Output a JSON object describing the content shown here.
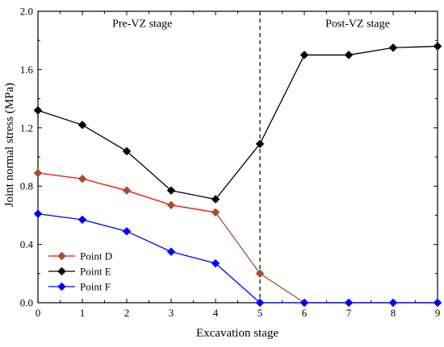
{
  "chart_data": {
    "type": "line",
    "title": "",
    "xlabel": "Excavation stage",
    "ylabel": "Joint normal stress (MPa)",
    "xlim": [
      0,
      9
    ],
    "ylim": [
      0,
      2.0
    ],
    "x_ticks": [
      0,
      1,
      2,
      3,
      4,
      5,
      6,
      7,
      8,
      9
    ],
    "y_ticks": [
      "0.0",
      "0.4",
      "0.8",
      "1.2",
      "1.6",
      "2.0"
    ],
    "grid": false,
    "legend_position": "bottom-left",
    "x": [
      0,
      1,
      2,
      3,
      4,
      5,
      6,
      7,
      8,
      9
    ],
    "series": [
      {
        "name": "Point D",
        "marker": "diamond",
        "segments": [
          {
            "from": 0,
            "to": 4,
            "color": "#ff0000"
          },
          {
            "from": 4,
            "to": 9,
            "color": "#a0522d"
          }
        ],
        "marker_colors": [
          "#a0522d",
          "#a0522d",
          "#a0522d",
          "#a0522d",
          "#a0522d",
          "#a0522d",
          "#a0522d",
          "#a0522d",
          "#a0522d",
          "#a0522d"
        ],
        "values": [
          0.89,
          0.85,
          0.77,
          0.67,
          0.62,
          0.2,
          0.0,
          0.0,
          0.0,
          0.0
        ]
      },
      {
        "name": "Point E",
        "marker": "diamond",
        "color": "#000000",
        "values": [
          1.32,
          1.22,
          1.04,
          0.77,
          0.71,
          1.09,
          1.7,
          1.7,
          1.75,
          1.76
        ]
      },
      {
        "name": "Point F",
        "marker": "diamond",
        "color": "#0000ff",
        "values": [
          0.61,
          0.57,
          0.49,
          0.35,
          0.27,
          0.0,
          0.0,
          0.0,
          0.0,
          0.0
        ]
      }
    ],
    "annotations": [
      {
        "type": "vline",
        "x": 5,
        "style": "dashed",
        "color": "#000000"
      },
      {
        "type": "text",
        "text": "Pre-VZ stage",
        "x": 2.35,
        "y": 1.92
      },
      {
        "type": "text",
        "text": "Post-VZ stage",
        "x": 7.2,
        "y": 1.92
      }
    ]
  }
}
